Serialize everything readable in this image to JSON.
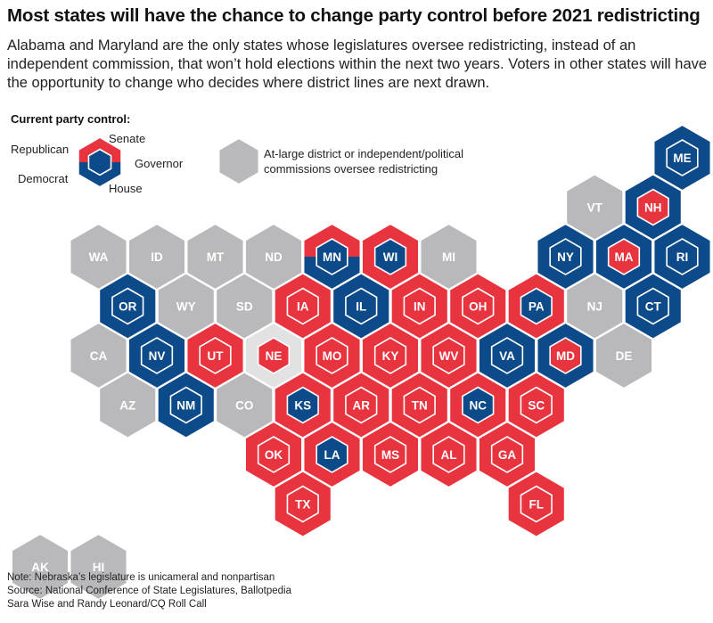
{
  "title": "Most states will have the chance to change party control before 2021 redistricting",
  "subtitle": "Alabama and Maryland are the only states whose legislatures oversee redistricting, instead of an independent commission, that won’t hold elections within the next two years. Voters in other states will have the opportunity to change who decides where district lines are next drawn.",
  "legend": {
    "heading": "Current party control:",
    "republican": "Republican",
    "democrat": "Democrat",
    "senate": "Senate",
    "governor": "Governor",
    "house": "House",
    "gray_line1": "At-large district or independent/political",
    "gray_line2": "commissions oversee redistricting"
  },
  "colors": {
    "republican": "#e8343f",
    "democrat": "#0d4a8a",
    "gray": "#b9b9bb",
    "nebraska": "#e2e2e3"
  },
  "states": [
    {
      "abbr": "ME",
      "row": 0,
      "col": 11,
      "senate": "D",
      "house": "D",
      "governor": "D"
    },
    {
      "abbr": "VT",
      "row": 1,
      "col": 9.5,
      "senate": "G",
      "house": "G",
      "governor": "G"
    },
    {
      "abbr": "NH",
      "row": 1,
      "col": 10.5,
      "senate": "D",
      "house": "D",
      "governor": "R"
    },
    {
      "abbr": "WA",
      "row": 2,
      "col": 1,
      "senate": "G",
      "house": "G",
      "governor": "G"
    },
    {
      "abbr": "ID",
      "row": 2,
      "col": 2,
      "senate": "G",
      "house": "G",
      "governor": "G"
    },
    {
      "abbr": "MT",
      "row": 2,
      "col": 3,
      "senate": "G",
      "house": "G",
      "governor": "G"
    },
    {
      "abbr": "ND",
      "row": 2,
      "col": 4,
      "senate": "G",
      "house": "G",
      "governor": "G"
    },
    {
      "abbr": "MN",
      "row": 2,
      "col": 5,
      "senate": "R",
      "house": "D",
      "governor": "D"
    },
    {
      "abbr": "WI",
      "row": 2,
      "col": 6,
      "senate": "R",
      "house": "R",
      "governor": "D"
    },
    {
      "abbr": "MI",
      "row": 2,
      "col": 7,
      "senate": "G",
      "house": "G",
      "governor": "G"
    },
    {
      "abbr": "NY",
      "row": 2,
      "col": 9,
      "senate": "D",
      "house": "D",
      "governor": "D"
    },
    {
      "abbr": "MA",
      "row": 2,
      "col": 10,
      "senate": "D",
      "house": "D",
      "governor": "R"
    },
    {
      "abbr": "RI",
      "row": 2,
      "col": 11,
      "senate": "D",
      "house": "D",
      "governor": "D"
    },
    {
      "abbr": "OR",
      "row": 3,
      "col": 1.5,
      "senate": "D",
      "house": "D",
      "governor": "D"
    },
    {
      "abbr": "WY",
      "row": 3,
      "col": 2.5,
      "senate": "G",
      "house": "G",
      "governor": "G"
    },
    {
      "abbr": "SD",
      "row": 3,
      "col": 3.5,
      "senate": "G",
      "house": "G",
      "governor": "G"
    },
    {
      "abbr": "IA",
      "row": 3,
      "col": 4.5,
      "senate": "R",
      "house": "R",
      "governor": "R"
    },
    {
      "abbr": "IL",
      "row": 3,
      "col": 5.5,
      "senate": "D",
      "house": "D",
      "governor": "D"
    },
    {
      "abbr": "IN",
      "row": 3,
      "col": 6.5,
      "senate": "R",
      "house": "R",
      "governor": "R"
    },
    {
      "abbr": "OH",
      "row": 3,
      "col": 7.5,
      "senate": "R",
      "house": "R",
      "governor": "R"
    },
    {
      "abbr": "PA",
      "row": 3,
      "col": 8.5,
      "senate": "R",
      "house": "R",
      "governor": "D"
    },
    {
      "abbr": "NJ",
      "row": 3,
      "col": 9.5,
      "senate": "G",
      "house": "G",
      "governor": "G"
    },
    {
      "abbr": "CT",
      "row": 3,
      "col": 10.5,
      "senate": "D",
      "house": "D",
      "governor": "D"
    },
    {
      "abbr": "CA",
      "row": 4,
      "col": 1,
      "senate": "G",
      "house": "G",
      "governor": "G"
    },
    {
      "abbr": "NV",
      "row": 4,
      "col": 2,
      "senate": "D",
      "house": "D",
      "governor": "D"
    },
    {
      "abbr": "UT",
      "row": 4,
      "col": 3,
      "senate": "R",
      "house": "R",
      "governor": "R"
    },
    {
      "abbr": "NE",
      "row": 4,
      "col": 4,
      "senate": "N",
      "house": "N",
      "governor": "R"
    },
    {
      "abbr": "MO",
      "row": 4,
      "col": 5,
      "senate": "R",
      "house": "R",
      "governor": "R"
    },
    {
      "abbr": "KY",
      "row": 4,
      "col": 6,
      "senate": "R",
      "house": "R",
      "governor": "R"
    },
    {
      "abbr": "WV",
      "row": 4,
      "col": 7,
      "senate": "R",
      "house": "R",
      "governor": "R"
    },
    {
      "abbr": "VA",
      "row": 4,
      "col": 8,
      "senate": "D",
      "house": "D",
      "governor": "D"
    },
    {
      "abbr": "MD",
      "row": 4,
      "col": 9,
      "senate": "D",
      "house": "D",
      "governor": "R"
    },
    {
      "abbr": "DE",
      "row": 4,
      "col": 10,
      "senate": "G",
      "house": "G",
      "governor": "G"
    },
    {
      "abbr": "AZ",
      "row": 5,
      "col": 1.5,
      "senate": "G",
      "house": "G",
      "governor": "G"
    },
    {
      "abbr": "NM",
      "row": 5,
      "col": 2.5,
      "senate": "D",
      "house": "D",
      "governor": "D"
    },
    {
      "abbr": "CO",
      "row": 5,
      "col": 3.5,
      "senate": "G",
      "house": "G",
      "governor": "G"
    },
    {
      "abbr": "KS",
      "row": 5,
      "col": 4.5,
      "senate": "R",
      "house": "R",
      "governor": "D"
    },
    {
      "abbr": "AR",
      "row": 5,
      "col": 5.5,
      "senate": "R",
      "house": "R",
      "governor": "R"
    },
    {
      "abbr": "TN",
      "row": 5,
      "col": 6.5,
      "senate": "R",
      "house": "R",
      "governor": "R"
    },
    {
      "abbr": "NC",
      "row": 5,
      "col": 7.5,
      "senate": "R",
      "house": "R",
      "governor": "D"
    },
    {
      "abbr": "SC",
      "row": 5,
      "col": 8.5,
      "senate": "R",
      "house": "R",
      "governor": "R"
    },
    {
      "abbr": "OK",
      "row": 6,
      "col": 4,
      "senate": "R",
      "house": "R",
      "governor": "R"
    },
    {
      "abbr": "LA",
      "row": 6,
      "col": 5,
      "senate": "R",
      "house": "R",
      "governor": "D"
    },
    {
      "abbr": "MS",
      "row": 6,
      "col": 6,
      "senate": "R",
      "house": "R",
      "governor": "R"
    },
    {
      "abbr": "AL",
      "row": 6,
      "col": 7,
      "senate": "R",
      "house": "R",
      "governor": "R"
    },
    {
      "abbr": "GA",
      "row": 6,
      "col": 8,
      "senate": "R",
      "house": "R",
      "governor": "R"
    },
    {
      "abbr": "TX",
      "row": 7,
      "col": 4.5,
      "senate": "R",
      "house": "R",
      "governor": "R"
    },
    {
      "abbr": "FL",
      "row": 7,
      "col": 8.5,
      "senate": "R",
      "house": "R",
      "governor": "R"
    },
    {
      "abbr": "AK",
      "row": 8,
      "col": 0,
      "senate": "G",
      "house": "G",
      "governor": "G"
    },
    {
      "abbr": "HI",
      "row": 8,
      "col": 1,
      "senate": "G",
      "house": "G",
      "governor": "G"
    }
  ],
  "notes": [
    "Note: Nebraska’s legislature is unicameral and nonpartisan",
    "Source: National Conference of State Legislatures, Ballotpedia",
    "Sara Wise and Randy Leonard/CQ Roll Call"
  ]
}
